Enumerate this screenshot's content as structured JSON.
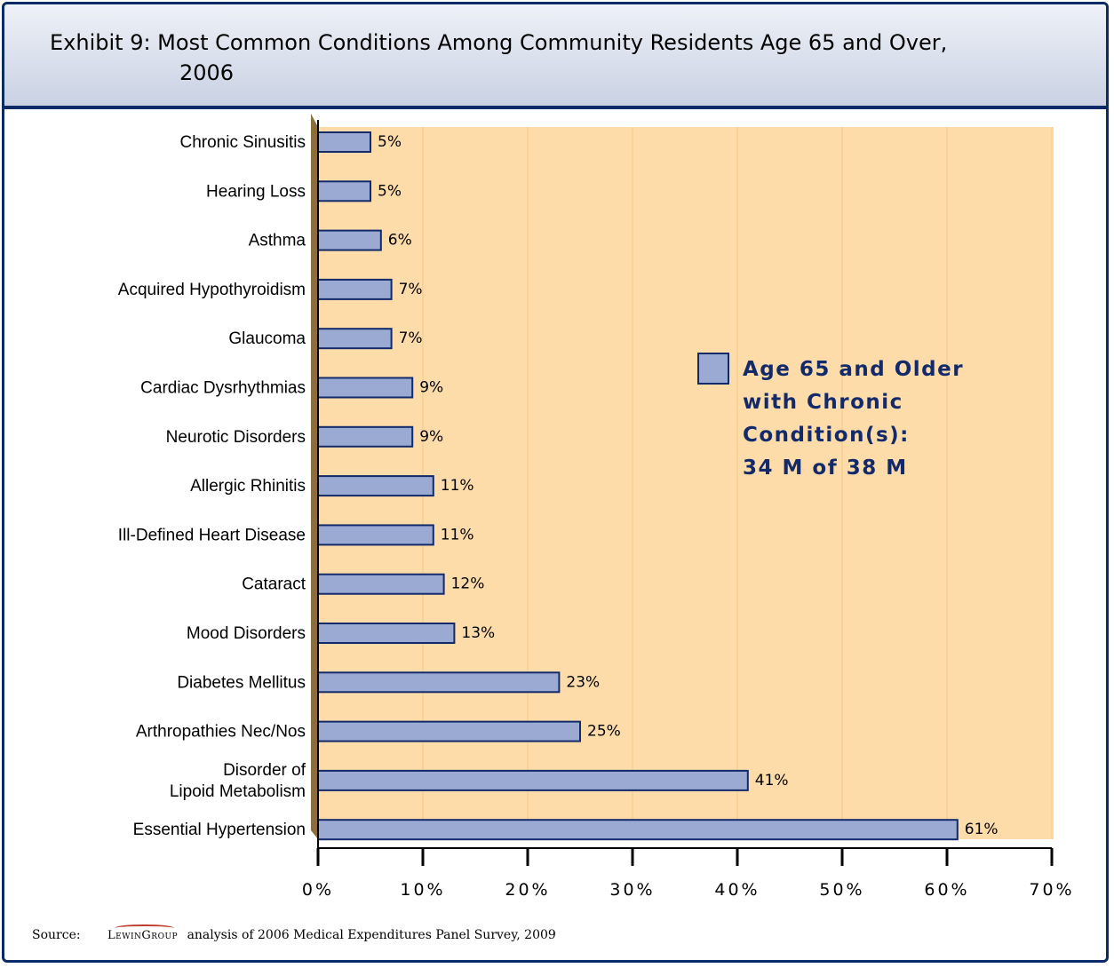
{
  "title": {
    "line1": "Exhibit 9: Most Common Conditions Among Community Residents Age 65 and Over,",
    "line2": "2006"
  },
  "colors": {
    "bar_fill": "#9aaad3",
    "bar_stroke": "#12296a",
    "plot_bg": "#fddcaa",
    "frame": "#0b2a66",
    "legend_text": "#12296a"
  },
  "legend": {
    "lines": [
      "Age 65 and Older",
      "with Chronic",
      "Condition(s):"
    ],
    "count": "34 M of 38 M"
  },
  "chart_data": {
    "type": "bar",
    "orientation": "horizontal",
    "categories": [
      "Chronic Sinusitis",
      "Hearing Loss",
      "Asthma",
      "Acquired Hypothyroidism",
      "Glaucoma",
      "Cardiac Dysrhythmias",
      "Neurotic Disorders",
      "Allergic Rhinitis",
      "Ill-Defined Heart Disease",
      "Cataract",
      "Mood Disorders",
      "Diabetes Mellitus",
      "Arthropathies Nec/Nos",
      "Disorder of Lipoid Metabolism",
      "Essential Hypertension"
    ],
    "category_lines": [
      [
        "Chronic Sinusitis"
      ],
      [
        "Hearing Loss"
      ],
      [
        "Asthma"
      ],
      [
        "Acquired Hypothyroidism"
      ],
      [
        "Glaucoma"
      ],
      [
        "Cardiac Dysrhythmias"
      ],
      [
        "Neurotic Disorders"
      ],
      [
        "Allergic Rhinitis"
      ],
      [
        "Ill-Defined Heart Disease"
      ],
      [
        "Cataract"
      ],
      [
        "Mood Disorders"
      ],
      [
        "Diabetes Mellitus"
      ],
      [
        "Arthropathies Nec/Nos"
      ],
      [
        "Disorder of ",
        "Lipoid Metabolism"
      ],
      [
        "Essential Hypertension"
      ]
    ],
    "values": [
      5,
      5,
      6,
      7,
      7,
      9,
      9,
      11,
      11,
      12,
      13,
      23,
      25,
      41,
      61
    ],
    "value_labels": [
      "5%",
      "5%",
      "6%",
      "7%",
      "7%",
      "9%",
      "9%",
      "11%",
      "11%",
      "12%",
      "13%",
      "23%",
      "25%",
      "41%",
      "61%"
    ],
    "series_name": "Age 65 and Older with Chronic Condition(s):",
    "xlim": [
      0,
      70
    ],
    "xticks": [
      0,
      10,
      20,
      30,
      40,
      50,
      60,
      70
    ],
    "xtick_labels": [
      "0%",
      "10%",
      "20%",
      "30%",
      "40%",
      "50%",
      "60%",
      "70%"
    ],
    "grid": true,
    "legend_position": "right"
  },
  "footer": {
    "label": "Source:",
    "logo": "LewinGroup",
    "text": "analysis of 2006 Medical Expenditures Panel Survey, 2009"
  }
}
